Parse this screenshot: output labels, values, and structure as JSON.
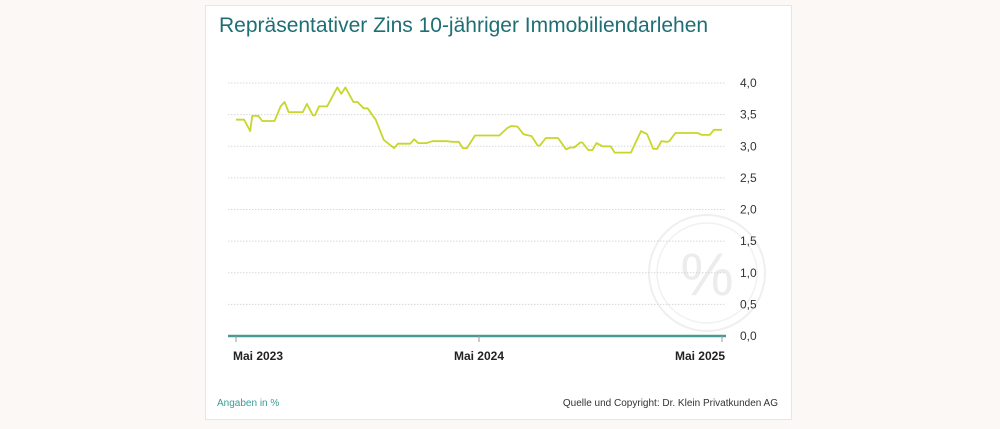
{
  "chart_data": {
    "type": "line",
    "title": "Repräsentativer Zins 10-jähriger Immobiliendarlehen",
    "xlabel": "",
    "ylabel": "",
    "x_unit": "months since Mai 2023",
    "xlim": [
      0,
      24
    ],
    "ylim": [
      0,
      4
    ],
    "grid": true,
    "y_ticks": [
      {
        "value": 0,
        "label": "0,0"
      },
      {
        "value": 0.5,
        "label": "0,5"
      },
      {
        "value": 1,
        "label": "1,0"
      },
      {
        "value": 1.5,
        "label": "1,5"
      },
      {
        "value": 2,
        "label": "2,0"
      },
      {
        "value": 2.5,
        "label": "2,5"
      },
      {
        "value": 3,
        "label": "3,0"
      },
      {
        "value": 3.5,
        "label": "3,5"
      },
      {
        "value": 4,
        "label": "4,0"
      }
    ],
    "x_ticks": [
      {
        "value": 0,
        "label": "Mai 2023"
      },
      {
        "value": 12,
        "label": "Mai 2024"
      },
      {
        "value": 24,
        "label": "Mai 2025"
      }
    ],
    "series": [
      {
        "name": "Zins",
        "color": "#c8d62a",
        "x": [
          0.0,
          0.4,
          0.7,
          0.8,
          1.1,
          1.3,
          1.9,
          2.2,
          2.4,
          2.6,
          3.3,
          3.5,
          3.8,
          3.9,
          4.1,
          4.5,
          5.0,
          5.2,
          5.4,
          5.8,
          6.0,
          6.3,
          6.5,
          6.9,
          7.3,
          7.8,
          8.0,
          8.6,
          8.8,
          9.0,
          9.4,
          9.7,
          10.4,
          10.7,
          11.0,
          11.2,
          11.4,
          11.8,
          13.0,
          13.4,
          13.6,
          13.9,
          14.2,
          14.6,
          14.9,
          15.0,
          15.3,
          15.9,
          16.3,
          16.5,
          16.7,
          17.0,
          17.1,
          17.4,
          17.6,
          17.8,
          18.1,
          18.5,
          18.7,
          19.5,
          20.0,
          20.3,
          20.6,
          20.8,
          21.0,
          21.3,
          21.4,
          21.7,
          22.8,
          23.0,
          23.4,
          23.6,
          24.0
        ],
        "y": [
          3.42,
          3.42,
          3.24,
          3.48,
          3.48,
          3.4,
          3.4,
          3.63,
          3.7,
          3.54,
          3.54,
          3.67,
          3.49,
          3.49,
          3.63,
          3.63,
          3.93,
          3.83,
          3.93,
          3.7,
          3.7,
          3.6,
          3.6,
          3.42,
          3.1,
          2.97,
          3.04,
          3.04,
          3.11,
          3.05,
          3.05,
          3.08,
          3.08,
          3.07,
          3.07,
          2.97,
          2.97,
          3.17,
          3.17,
          3.29,
          3.32,
          3.31,
          3.19,
          3.16,
          3.01,
          3.01,
          3.13,
          3.13,
          2.95,
          2.98,
          2.98,
          3.06,
          3.06,
          2.94,
          2.94,
          3.05,
          3.0,
          3.0,
          2.9,
          2.9,
          3.24,
          3.19,
          2.96,
          2.96,
          3.08,
          3.07,
          3.08,
          3.21,
          3.21,
          3.18,
          3.18,
          3.26,
          3.26
        ]
      }
    ],
    "footnote": "Angaben in %",
    "source": "Quelle und Copyright: Dr. Klein Privatkunden AG",
    "watermark": "%"
  },
  "colors": {
    "title": "#1e6f74",
    "axis": "#4a9a94",
    "line": "#c8d62a",
    "grid": "#d8d8d8"
  }
}
